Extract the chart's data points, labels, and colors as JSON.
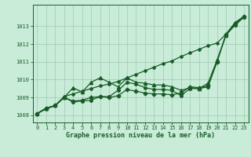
{
  "background_color": "#c8ecd8",
  "plot_bg_color": "#c8ecd8",
  "grid_color": "#a0c8b0",
  "line_color": "#1a5c28",
  "ylim": [
    1007.6,
    1014.2
  ],
  "xlim": [
    -0.5,
    23.5
  ],
  "yticks": [
    1008,
    1009,
    1010,
    1011,
    1012,
    1013
  ],
  "xticks": [
    0,
    1,
    2,
    3,
    4,
    5,
    6,
    7,
    8,
    9,
    10,
    11,
    12,
    13,
    14,
    15,
    16,
    17,
    18,
    19,
    20,
    21,
    22,
    23
  ],
  "xlabel": "Graphe pression niveau de la mer (hPa)",
  "series": [
    {
      "x": [
        0,
        1,
        2,
        3,
        4,
        5,
        6,
        7,
        8,
        9,
        10,
        11,
        12,
        13,
        14,
        15,
        16,
        17,
        18,
        19,
        20,
        21,
        22,
        23
      ],
      "y": [
        1008.1,
        1008.35,
        1008.55,
        1009.05,
        1009.2,
        1009.35,
        1009.5,
        1009.65,
        1009.75,
        1009.9,
        1010.1,
        1010.3,
        1010.5,
        1010.7,
        1010.9,
        1011.05,
        1011.3,
        1011.5,
        1011.7,
        1011.9,
        1012.05,
        1012.55,
        1013.2,
        1013.55
      ],
      "marker": "D",
      "markersize": 2.0,
      "linewidth": 0.9
    },
    {
      "x": [
        0,
        1,
        2,
        3,
        4,
        5,
        6,
        7,
        8,
        9,
        10,
        11,
        12,
        13,
        14,
        15,
        16,
        17,
        18,
        19,
        20,
        21,
        22,
        23
      ],
      "y": [
        1008.1,
        1008.4,
        1008.55,
        1009.0,
        1009.55,
        1009.3,
        1009.85,
        1010.1,
        1009.85,
        1009.6,
        1010.1,
        1009.85,
        1009.8,
        1009.7,
        1009.7,
        1009.6,
        1009.4,
        1009.55,
        1009.5,
        1009.8,
        1011.1,
        1012.5,
        1013.1,
        1013.55
      ],
      "marker": "^",
      "markersize": 3.0,
      "linewidth": 0.9
    },
    {
      "x": [
        0,
        1,
        2,
        3,
        4,
        5,
        6,
        7,
        8,
        9,
        10,
        11,
        12,
        13,
        14,
        15,
        16,
        17,
        18,
        19,
        20,
        21,
        22,
        23
      ],
      "y": [
        1008.1,
        1008.4,
        1008.55,
        1009.0,
        1008.8,
        1008.85,
        1009.0,
        1009.05,
        1009.0,
        1009.1,
        1009.45,
        1009.35,
        1009.25,
        1009.2,
        1009.2,
        1009.15,
        1009.25,
        1009.6,
        1009.55,
        1009.65,
        1011.0,
        1012.55,
        1013.15,
        1013.55
      ],
      "marker": "D",
      "markersize": 2.5,
      "linewidth": 0.9
    },
    {
      "x": [
        0,
        1,
        2,
        3,
        4,
        5,
        6,
        7,
        8,
        9,
        10,
        11,
        12,
        13,
        14,
        15,
        16,
        17,
        18,
        19,
        20,
        21,
        22,
        23
      ],
      "y": [
        1008.1,
        1008.4,
        1008.55,
        1009.0,
        1008.75,
        1008.8,
        1008.85,
        1009.05,
        1009.05,
        1009.4,
        1009.85,
        1009.75,
        1009.55,
        1009.45,
        1009.45,
        1009.4,
        1009.1,
        1009.5,
        1009.5,
        1009.6,
        1011.0,
        1012.5,
        1013.05,
        1013.5
      ],
      "marker": "o",
      "markersize": 2.5,
      "linewidth": 0.9
    }
  ]
}
